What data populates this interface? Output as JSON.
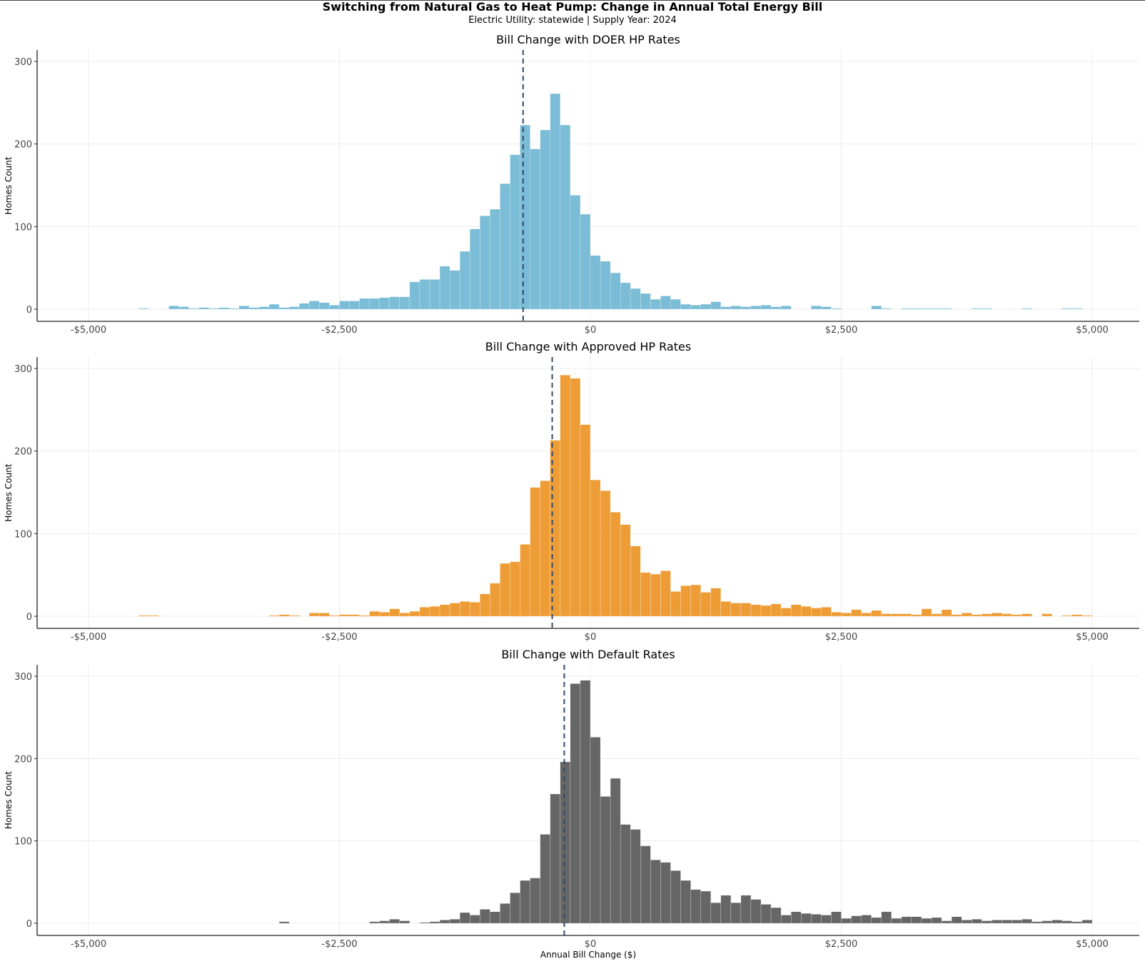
{
  "figure": {
    "title": "Switching from Natural Gas to Heat Pump: Change in Annual Total Energy Bill",
    "subtitle": "Electric Utility: statewide | Supply Year: 2024",
    "x_axis_label": "Annual Bill Change ($)"
  },
  "chart_data": [
    {
      "type": "bar",
      "title": "Bill Change with DOER HP Rates",
      "ylabel": "Homes Count",
      "bar_color": "#7BBCD6",
      "mean_line_x": -670,
      "bin_width": 100,
      "xlim": [
        -5500,
        5500
      ],
      "ylim": [
        0,
        315
      ],
      "x_ticks": [
        -5000,
        -2500,
        0,
        2500,
        5000
      ],
      "x_tick_labels": [
        "-$5,000",
        "-$2,500",
        "$0",
        "$2,500",
        "$5,000"
      ],
      "y_ticks": [
        0,
        100,
        200,
        300
      ],
      "x": [
        -4500,
        -4400,
        -4300,
        -4200,
        -4100,
        -4000,
        -3900,
        -3800,
        -3700,
        -3600,
        -3500,
        -3400,
        -3300,
        -3200,
        -3100,
        -3000,
        -2900,
        -2800,
        -2700,
        -2600,
        -2500,
        -2400,
        -2300,
        -2200,
        -2100,
        -2000,
        -1900,
        -1800,
        -1700,
        -1600,
        -1500,
        -1400,
        -1300,
        -1200,
        -1100,
        -1000,
        -900,
        -800,
        -700,
        -600,
        -500,
        -400,
        -300,
        -200,
        -100,
        0,
        100,
        200,
        300,
        400,
        500,
        600,
        700,
        800,
        900,
        1000,
        1100,
        1200,
        1300,
        1400,
        1500,
        1600,
        1700,
        1800,
        1900,
        2000,
        2100,
        2200,
        2300,
        2400,
        2500,
        2600,
        2700,
        2800,
        2900,
        3000,
        3100,
        3200,
        3300,
        3400,
        3500,
        3600,
        3700,
        3800,
        3900,
        4000,
        4100,
        4200,
        4300,
        4400,
        4500,
        4600,
        4700,
        4800,
        4900
      ],
      "values": [
        1,
        0,
        0,
        4,
        3,
        1,
        2,
        1,
        2,
        1,
        4,
        2,
        3,
        6,
        2,
        3,
        7,
        10,
        8,
        5,
        10,
        10,
        13,
        13,
        14,
        15,
        15,
        33,
        36,
        36,
        52,
        47,
        70,
        97,
        113,
        121,
        152,
        187,
        223,
        194,
        217,
        261,
        223,
        138,
        115,
        65,
        58,
        44,
        32,
        25,
        19,
        12,
        16,
        12,
        6,
        5,
        6,
        9,
        3,
        4,
        3,
        4,
        5,
        3,
        4,
        0,
        0,
        4,
        3,
        1,
        0,
        0,
        0,
        4,
        1,
        0,
        1,
        1,
        1,
        1,
        1,
        0,
        0,
        1,
        1,
        0,
        0,
        0,
        1,
        0,
        0,
        0,
        1,
        1,
        0
      ]
    },
    {
      "type": "bar",
      "title": "Bill Change with Approved HP Rates",
      "ylabel": "Homes Count",
      "bar_color": "#EE9D36",
      "mean_line_x": -380,
      "bin_width": 100,
      "xlim": [
        -5500,
        5500
      ],
      "ylim": [
        0,
        315
      ],
      "x_ticks": [
        -5000,
        -2500,
        0,
        2500,
        5000
      ],
      "x_tick_labels": [
        "-$5,000",
        "-$2,500",
        "$0",
        "$2,500",
        "$5,000"
      ],
      "y_ticks": [
        0,
        100,
        200,
        300
      ],
      "x": [
        -4500,
        -4400,
        -4300,
        -4200,
        -4100,
        -4000,
        -3900,
        -3800,
        -3700,
        -3600,
        -3500,
        -3400,
        -3300,
        -3200,
        -3100,
        -3000,
        -2900,
        -2800,
        -2700,
        -2600,
        -2500,
        -2400,
        -2300,
        -2200,
        -2100,
        -2000,
        -1900,
        -1800,
        -1700,
        -1600,
        -1500,
        -1400,
        -1300,
        -1200,
        -1100,
        -1000,
        -900,
        -800,
        -700,
        -600,
        -500,
        -400,
        -300,
        -200,
        -100,
        0,
        100,
        200,
        300,
        400,
        500,
        600,
        700,
        800,
        900,
        1000,
        1100,
        1200,
        1300,
        1400,
        1500,
        1600,
        1700,
        1800,
        1900,
        2000,
        2100,
        2200,
        2300,
        2400,
        2500,
        2600,
        2700,
        2800,
        2900,
        3000,
        3100,
        3200,
        3300,
        3400,
        3500,
        3600,
        3700,
        3800,
        3900,
        4000,
        4100,
        4200,
        4300,
        4400,
        4500,
        4600,
        4700,
        4800,
        4900
      ],
      "values": [
        1,
        1,
        0,
        0,
        0,
        0,
        0,
        0,
        0,
        0,
        0,
        0,
        0,
        1,
        2,
        1,
        0,
        4,
        4,
        1,
        2,
        2,
        1,
        6,
        5,
        9,
        4,
        6,
        11,
        12,
        14,
        16,
        18,
        17,
        27,
        40,
        64,
        66,
        87,
        156,
        164,
        213,
        292,
        288,
        232,
        165,
        152,
        126,
        111,
        85,
        53,
        51,
        55,
        30,
        37,
        38,
        29,
        34,
        18,
        16,
        16,
        14,
        13,
        15,
        10,
        14,
        12,
        10,
        11,
        5,
        4,
        8,
        4,
        7,
        3,
        3,
        3,
        2,
        9,
        3,
        8,
        2,
        4,
        2,
        3,
        4,
        3,
        2,
        3,
        0,
        3,
        0,
        1,
        2,
        1
      ]
    },
    {
      "type": "bar",
      "title": "Bill Change with Default Rates",
      "ylabel": "Homes Count",
      "bar_color": "#666666",
      "mean_line_x": -260,
      "bin_width": 100,
      "xlim": [
        -5500,
        5500
      ],
      "ylim": [
        0,
        315
      ],
      "x_ticks": [
        -5000,
        -2500,
        0,
        2500,
        5000
      ],
      "x_tick_labels": [
        "-$5,000",
        "-$2,500",
        "$0",
        "$2,500",
        "$5,000"
      ],
      "y_ticks": [
        0,
        100,
        200,
        300
      ],
      "x": [
        -4500,
        -4400,
        -4300,
        -4200,
        -4100,
        -4000,
        -3900,
        -3800,
        -3700,
        -3600,
        -3500,
        -3400,
        -3300,
        -3200,
        -3100,
        -3000,
        -2900,
        -2800,
        -2700,
        -2600,
        -2500,
        -2400,
        -2300,
        -2200,
        -2100,
        -2000,
        -1900,
        -1800,
        -1700,
        -1600,
        -1500,
        -1400,
        -1300,
        -1200,
        -1100,
        -1000,
        -900,
        -800,
        -700,
        -600,
        -500,
        -400,
        -300,
        -200,
        -100,
        0,
        100,
        200,
        300,
        400,
        500,
        600,
        700,
        800,
        900,
        1000,
        1100,
        1200,
        1300,
        1400,
        1500,
        1600,
        1700,
        1800,
        1900,
        2000,
        2100,
        2200,
        2300,
        2400,
        2500,
        2600,
        2700,
        2800,
        2900,
        3000,
        3100,
        3200,
        3300,
        3400,
        3500,
        3600,
        3700,
        3800,
        3900,
        4000,
        4100,
        4200,
        4300,
        4400,
        4500,
        4600,
        4700,
        4800,
        4900
      ],
      "values": [
        0,
        0,
        0,
        0,
        0,
        0,
        0,
        0,
        0,
        0,
        0,
        0,
        0,
        0,
        2,
        0,
        0,
        0,
        0,
        0,
        0,
        0,
        0,
        2,
        3,
        5,
        3,
        0,
        1,
        2,
        4,
        5,
        13,
        10,
        17,
        14,
        24,
        37,
        52,
        55,
        108,
        157,
        196,
        291,
        295,
        226,
        154,
        176,
        120,
        114,
        94,
        77,
        74,
        64,
        52,
        41,
        39,
        25,
        34,
        25,
        34,
        29,
        23,
        19,
        10,
        14,
        12,
        11,
        10,
        14,
        6,
        9,
        10,
        7,
        14,
        6,
        8,
        8,
        6,
        7,
        3,
        8,
        4,
        5,
        3,
        4,
        4,
        4,
        5,
        2,
        3,
        4,
        3,
        2,
        4
      ]
    }
  ]
}
